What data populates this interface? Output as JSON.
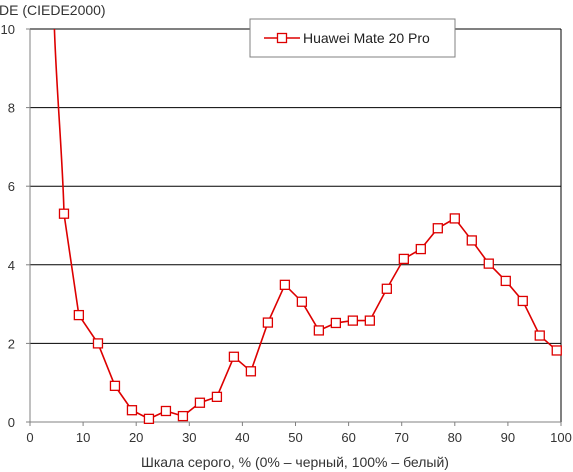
{
  "chart_data": {
    "type": "line",
    "title": "",
    "ylabel": "DE (CIEDE2000)",
    "xlabel": "Шкала серого, % (0% – черный, 100% – белый)",
    "xlim": [
      0,
      100
    ],
    "ylim": [
      0,
      10
    ],
    "x_ticks": [
      0,
      10,
      20,
      30,
      40,
      50,
      60,
      70,
      80,
      90,
      100
    ],
    "y_ticks": [
      0,
      2,
      4,
      6,
      8,
      10
    ],
    "grid": "horizontal",
    "legend_position": "top-right",
    "series": [
      {
        "name": "Huawei Mate 20 Pro",
        "color": "#dd0000",
        "marker": "open-square",
        "pre_window_curve_top": {
          "x": 4.6,
          "y": 10.0
        },
        "x": [
          6.4,
          9.2,
          12.8,
          16.0,
          19.2,
          22.4,
          25.6,
          28.8,
          32.0,
          35.2,
          38.4,
          41.6,
          44.8,
          48.0,
          51.2,
          54.4,
          57.6,
          60.8,
          64.0,
          67.2,
          70.4,
          73.6,
          76.8,
          80.0,
          83.2,
          86.4,
          89.6,
          92.8,
          96.0,
          99.2
        ],
        "values": [
          5.3,
          2.72,
          2.0,
          0.92,
          0.3,
          0.08,
          0.28,
          0.15,
          0.49,
          0.64,
          1.66,
          1.29,
          2.53,
          3.49,
          3.06,
          2.33,
          2.52,
          2.58,
          2.58,
          3.39,
          4.15,
          4.4,
          4.93,
          5.18,
          4.62,
          4.03,
          3.59,
          3.08,
          2.2,
          1.82
        ]
      }
    ]
  }
}
